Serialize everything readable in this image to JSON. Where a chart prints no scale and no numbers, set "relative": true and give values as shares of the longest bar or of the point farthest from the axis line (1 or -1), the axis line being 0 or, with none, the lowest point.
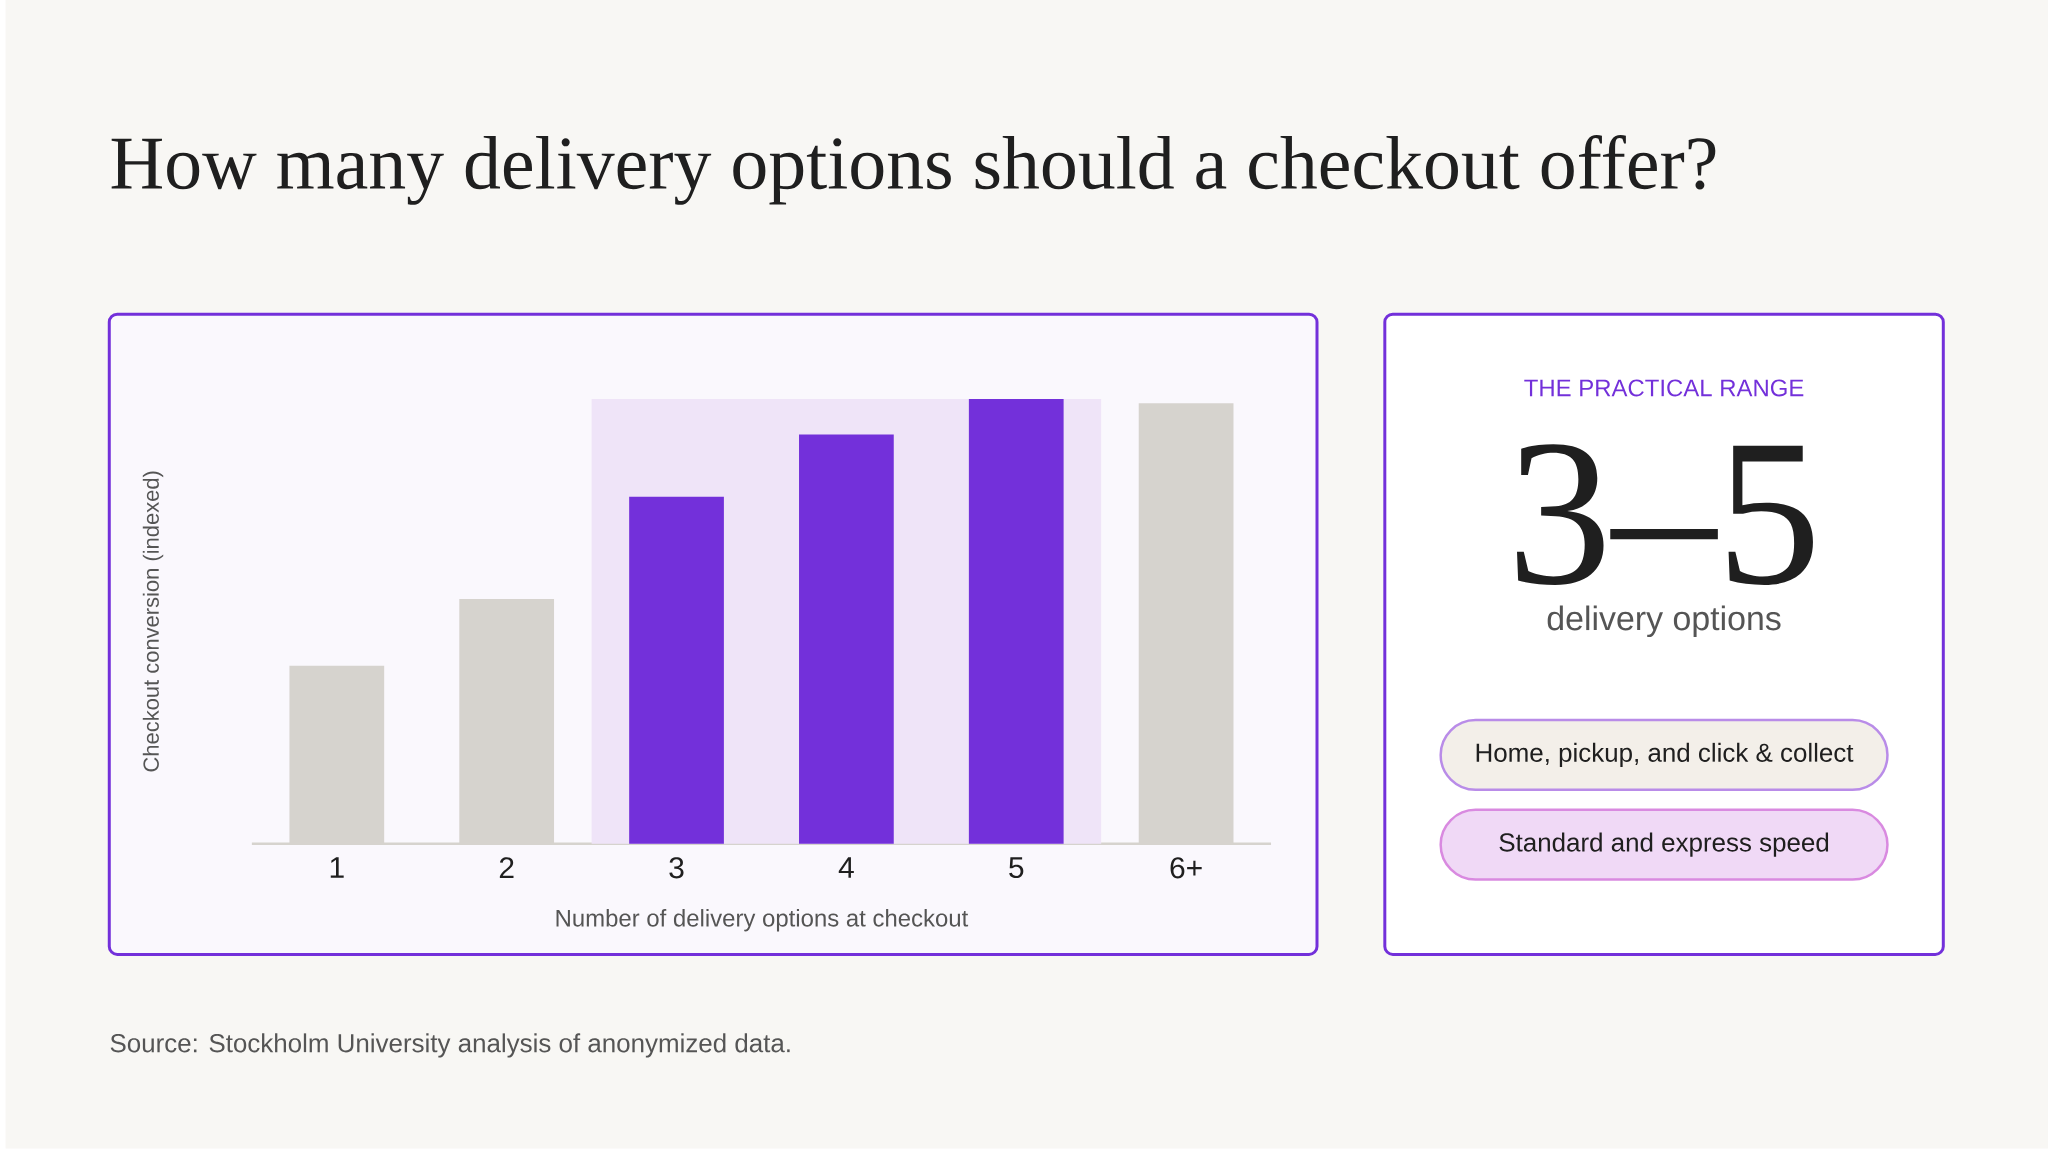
{
  "chart_data": [
    {
      "type": "bar",
      "title": "How many delivery options should a checkout offer?",
      "xlabel": "Number of delivery options at checkout",
      "ylabel": "Checkout conversion (indexed)",
      "categories": [
        "1",
        "2",
        "3",
        "4",
        "5",
        "6+"
      ],
      "values": [
        0.4,
        0.55,
        0.78,
        0.92,
        1,
        0.99
      ],
      "colors": [
        "#d6d3ce",
        "#d6d3ce",
        "#7330da",
        "#7330da",
        "#7330da",
        "#d6d3ce"
      ],
      "relative": true,
      "bands": [
        {
          "axis": "x",
          "from": "3",
          "to": "5",
          "color": "#efe4f8"
        }
      ],
      "annotations": [
        "Source: Stockholm University analysis of anonymized data."
      ]
    },
    {
      "type": "other",
      "title": "THE PRACTICAL RANGE",
      "annotations": [
        "3–5",
        "delivery options",
        "Home, pickup, and click & collect",
        "Standard and express speed"
      ]
    }
  ]
}
